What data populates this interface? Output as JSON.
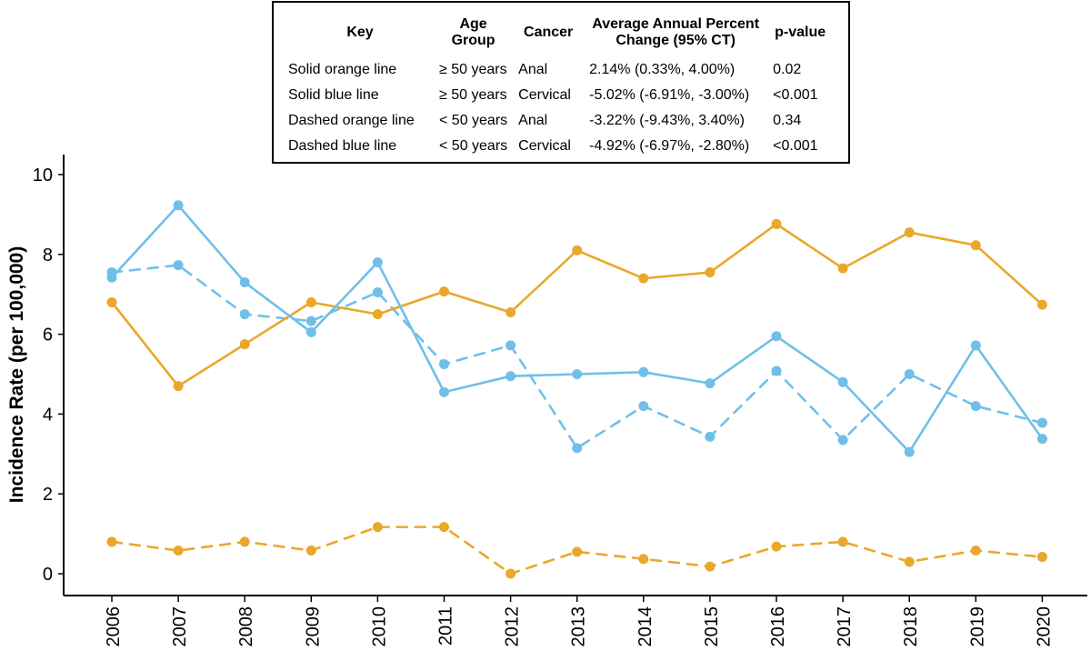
{
  "key_table": {
    "headers": {
      "key": "Key",
      "age_group": "Age Group",
      "cancer": "Cancer",
      "apc": "Average Annual Percent Change (95% CT)",
      "p_value": "p-value"
    },
    "rows": [
      {
        "key": "Solid orange line",
        "age_group": "≥ 50 years",
        "cancer": "Anal",
        "apc": "2.14% (0.33%, 4.00%)",
        "p_value": "0.02"
      },
      {
        "key": "Solid blue line",
        "age_group": "≥ 50 years",
        "cancer": "Cervical",
        "apc": "-5.02% (-6.91%, -3.00%)",
        "p_value": "<0.001"
      },
      {
        "key": "Dashed orange line",
        "age_group": "< 50 years",
        "cancer": "Anal",
        "apc": "-3.22% (-9.43%, 3.40%)",
        "p_value": "0.34"
      },
      {
        "key": "Dashed blue line",
        "age_group": "< 50 years",
        "cancer": "Cervical",
        "apc": "-4.92% (-6.97%, -2.80%)",
        "p_value": "<0.001"
      }
    ]
  },
  "chart_data": {
    "type": "line",
    "title": "",
    "xlabel": "",
    "ylabel": "Incidence Rate (per 100,000)",
    "ylim": [
      0,
      10
    ],
    "yticks": [
      0,
      2,
      4,
      6,
      8,
      10
    ],
    "x": [
      "2006",
      "2007",
      "2008",
      "2009",
      "2010",
      "2011",
      "2012",
      "2013",
      "2014",
      "2015",
      "2016",
      "2017",
      "2018",
      "2019",
      "2020"
    ],
    "grid": false,
    "series": [
      {
        "color": "#e9a82a",
        "dashed": false,
        "values": [
          6.8,
          4.7,
          5.75,
          6.8,
          6.5,
          7.07,
          6.55,
          8.1,
          7.4,
          7.55,
          8.76,
          7.65,
          8.55,
          8.23,
          6.74
        ]
      },
      {
        "color": "#70bfe9",
        "dashed": false,
        "values": [
          7.42,
          9.23,
          7.3,
          6.05,
          7.8,
          4.55,
          4.95,
          5.0,
          5.05,
          4.77,
          5.95,
          4.8,
          3.05,
          5.72,
          3.38
        ]
      },
      {
        "color": "#e9a82a",
        "dashed": true,
        "values": [
          0.8,
          0.58,
          0.8,
          0.58,
          1.17,
          1.17,
          0.0,
          0.55,
          0.37,
          0.18,
          0.68,
          0.8,
          0.3,
          0.58,
          0.42
        ]
      },
      {
        "color": "#70bfe9",
        "dashed": true,
        "values": [
          7.55,
          7.73,
          6.5,
          6.33,
          7.05,
          5.25,
          5.72,
          3.15,
          4.2,
          3.43,
          5.08,
          3.35,
          5.0,
          4.2,
          3.78
        ]
      }
    ]
  }
}
